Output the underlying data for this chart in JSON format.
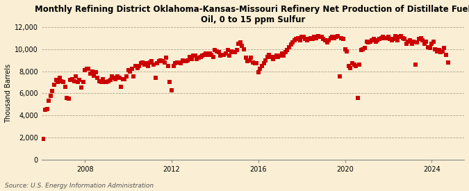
{
  "title": "Monthly Refining District Oklahoma-Kansas-Missouri Refinery Net Production of Distillate Fuel\nOil, 0 to 15 ppm Sulfur",
  "ylabel": "Thousand Barrels",
  "source": "Source: U.S. Energy Information Administration",
  "bg_color": "#faefd4",
  "plot_bg_color": "#faefd4",
  "marker_color": "#cc0000",
  "marker": "s",
  "marker_size": 4,
  "ylim": [
    0,
    12000
  ],
  "yticks": [
    0,
    2000,
    4000,
    6000,
    8000,
    10000,
    12000
  ],
  "ytick_labels": [
    "0",
    "2,000",
    "4,000",
    "6,000",
    "8,000",
    "10,000",
    "12,000"
  ],
  "xlim_start": 2006.0,
  "xlim_end": 2025.5,
  "xticks": [
    2008,
    2012,
    2016,
    2020,
    2024
  ],
  "grid_color": "#b0a090",
  "grid_style": "--",
  "title_fontsize": 8.5,
  "data": [
    [
      2006.083,
      1900
    ],
    [
      2006.167,
      4500
    ],
    [
      2006.25,
      4600
    ],
    [
      2006.333,
      5300
    ],
    [
      2006.417,
      5800
    ],
    [
      2006.5,
      6200
    ],
    [
      2006.583,
      6800
    ],
    [
      2006.667,
      7200
    ],
    [
      2006.75,
      7000
    ],
    [
      2006.833,
      7400
    ],
    [
      2006.917,
      7100
    ],
    [
      2007.0,
      7000
    ],
    [
      2007.083,
      6600
    ],
    [
      2007.167,
      5600
    ],
    [
      2007.25,
      5500
    ],
    [
      2007.333,
      7200
    ],
    [
      2007.417,
      7300
    ],
    [
      2007.5,
      7100
    ],
    [
      2007.583,
      7500
    ],
    [
      2007.667,
      7000
    ],
    [
      2007.75,
      7200
    ],
    [
      2007.833,
      6500
    ],
    [
      2007.917,
      7000
    ],
    [
      2008.0,
      8100
    ],
    [
      2008.083,
      8200
    ],
    [
      2008.167,
      8200
    ],
    [
      2008.25,
      7800
    ],
    [
      2008.333,
      8000
    ],
    [
      2008.417,
      7600
    ],
    [
      2008.5,
      7900
    ],
    [
      2008.583,
      7400
    ],
    [
      2008.667,
      7100
    ],
    [
      2008.75,
      7000
    ],
    [
      2008.833,
      7300
    ],
    [
      2008.917,
      7000
    ],
    [
      2009.0,
      7000
    ],
    [
      2009.083,
      7100
    ],
    [
      2009.167,
      7200
    ],
    [
      2009.25,
      7500
    ],
    [
      2009.333,
      7400
    ],
    [
      2009.417,
      7300
    ],
    [
      2009.5,
      7500
    ],
    [
      2009.583,
      7400
    ],
    [
      2009.667,
      6600
    ],
    [
      2009.75,
      7300
    ],
    [
      2009.833,
      7300
    ],
    [
      2009.917,
      7500
    ],
    [
      2010.0,
      8100
    ],
    [
      2010.083,
      8000
    ],
    [
      2010.167,
      8200
    ],
    [
      2010.25,
      7500
    ],
    [
      2010.333,
      8500
    ],
    [
      2010.417,
      8300
    ],
    [
      2010.5,
      8500
    ],
    [
      2010.583,
      8700
    ],
    [
      2010.667,
      8800
    ],
    [
      2010.75,
      8600
    ],
    [
      2010.833,
      8700
    ],
    [
      2010.917,
      8500
    ],
    [
      2011.0,
      8800
    ],
    [
      2011.083,
      8900
    ],
    [
      2011.167,
      8600
    ],
    [
      2011.25,
      7400
    ],
    [
      2011.333,
      8700
    ],
    [
      2011.417,
      8900
    ],
    [
      2011.5,
      9000
    ],
    [
      2011.583,
      8900
    ],
    [
      2011.667,
      8800
    ],
    [
      2011.75,
      9200
    ],
    [
      2011.833,
      8500
    ],
    [
      2011.917,
      7000
    ],
    [
      2012.0,
      6300
    ],
    [
      2012.083,
      8500
    ],
    [
      2012.167,
      8700
    ],
    [
      2012.25,
      8800
    ],
    [
      2012.333,
      8800
    ],
    [
      2012.417,
      8700
    ],
    [
      2012.5,
      9000
    ],
    [
      2012.583,
      8900
    ],
    [
      2012.667,
      8900
    ],
    [
      2012.75,
      9000
    ],
    [
      2012.833,
      9300
    ],
    [
      2012.917,
      9100
    ],
    [
      2013.0,
      9400
    ],
    [
      2013.083,
      9400
    ],
    [
      2013.167,
      9100
    ],
    [
      2013.25,
      9200
    ],
    [
      2013.333,
      9300
    ],
    [
      2013.417,
      9400
    ],
    [
      2013.5,
      9500
    ],
    [
      2013.583,
      9600
    ],
    [
      2013.667,
      9500
    ],
    [
      2013.75,
      9600
    ],
    [
      2013.833,
      9500
    ],
    [
      2013.917,
      9300
    ],
    [
      2014.0,
      9900
    ],
    [
      2014.083,
      9800
    ],
    [
      2014.167,
      9700
    ],
    [
      2014.25,
      9400
    ],
    [
      2014.333,
      9500
    ],
    [
      2014.417,
      9500
    ],
    [
      2014.5,
      9600
    ],
    [
      2014.583,
      9900
    ],
    [
      2014.667,
      9400
    ],
    [
      2014.75,
      9800
    ],
    [
      2014.833,
      9700
    ],
    [
      2014.917,
      9700
    ],
    [
      2015.0,
      9900
    ],
    [
      2015.083,
      10500
    ],
    [
      2015.167,
      10600
    ],
    [
      2015.25,
      10300
    ],
    [
      2015.333,
      10000
    ],
    [
      2015.417,
      9200
    ],
    [
      2015.5,
      8900
    ],
    [
      2015.583,
      9000
    ],
    [
      2015.667,
      9200
    ],
    [
      2015.75,
      8800
    ],
    [
      2015.833,
      8700
    ],
    [
      2015.917,
      8700
    ],
    [
      2016.0,
      7900
    ],
    [
      2016.083,
      8200
    ],
    [
      2016.167,
      8500
    ],
    [
      2016.25,
      8700
    ],
    [
      2016.333,
      9000
    ],
    [
      2016.417,
      9300
    ],
    [
      2016.5,
      9500
    ],
    [
      2016.583,
      9300
    ],
    [
      2016.667,
      9100
    ],
    [
      2016.75,
      9300
    ],
    [
      2016.833,
      9400
    ],
    [
      2016.917,
      9300
    ],
    [
      2017.0,
      9400
    ],
    [
      2017.083,
      9600
    ],
    [
      2017.167,
      9400
    ],
    [
      2017.25,
      9700
    ],
    [
      2017.333,
      9900
    ],
    [
      2017.417,
      10200
    ],
    [
      2017.5,
      10400
    ],
    [
      2017.583,
      10600
    ],
    [
      2017.667,
      10800
    ],
    [
      2017.75,
      10900
    ],
    [
      2017.833,
      11000
    ],
    [
      2017.917,
      10800
    ],
    [
      2018.0,
      11100
    ],
    [
      2018.083,
      11100
    ],
    [
      2018.167,
      10900
    ],
    [
      2018.25,
      10800
    ],
    [
      2018.333,
      10900
    ],
    [
      2018.417,
      11000
    ],
    [
      2018.5,
      10900
    ],
    [
      2018.583,
      11100
    ],
    [
      2018.667,
      11000
    ],
    [
      2018.75,
      11200
    ],
    [
      2018.833,
      11100
    ],
    [
      2018.917,
      11100
    ],
    [
      2019.0,
      10900
    ],
    [
      2019.083,
      10800
    ],
    [
      2019.167,
      10600
    ],
    [
      2019.25,
      10800
    ],
    [
      2019.333,
      11000
    ],
    [
      2019.417,
      11100
    ],
    [
      2019.5,
      11000
    ],
    [
      2019.583,
      11100
    ],
    [
      2019.667,
      11200
    ],
    [
      2019.75,
      7500
    ],
    [
      2019.833,
      11000
    ],
    [
      2019.917,
      10900
    ],
    [
      2020.0,
      10000
    ],
    [
      2020.083,
      9800
    ],
    [
      2020.167,
      8500
    ],
    [
      2020.25,
      8300
    ],
    [
      2020.333,
      8700
    ],
    [
      2020.417,
      8600
    ],
    [
      2020.5,
      8500
    ],
    [
      2020.583,
      5600
    ],
    [
      2020.667,
      8600
    ],
    [
      2020.75,
      9900
    ],
    [
      2020.833,
      10000
    ],
    [
      2020.917,
      10100
    ],
    [
      2021.0,
      10700
    ],
    [
      2021.083,
      10600
    ],
    [
      2021.167,
      10700
    ],
    [
      2021.25,
      10800
    ],
    [
      2021.333,
      10900
    ],
    [
      2021.417,
      10700
    ],
    [
      2021.5,
      10800
    ],
    [
      2021.583,
      10900
    ],
    [
      2021.667,
      11000
    ],
    [
      2021.75,
      11100
    ],
    [
      2021.833,
      11000
    ],
    [
      2021.917,
      11000
    ],
    [
      2022.0,
      11100
    ],
    [
      2022.083,
      10900
    ],
    [
      2022.167,
      10800
    ],
    [
      2022.25,
      10900
    ],
    [
      2022.333,
      11200
    ],
    [
      2022.417,
      10800
    ],
    [
      2022.5,
      11100
    ],
    [
      2022.583,
      11200
    ],
    [
      2022.667,
      11000
    ],
    [
      2022.75,
      10900
    ],
    [
      2022.833,
      10500
    ],
    [
      2022.917,
      10700
    ],
    [
      2023.0,
      10800
    ],
    [
      2023.083,
      10500
    ],
    [
      2023.167,
      10700
    ],
    [
      2023.25,
      8600
    ],
    [
      2023.333,
      10600
    ],
    [
      2023.417,
      10900
    ],
    [
      2023.5,
      11000
    ],
    [
      2023.583,
      10800
    ],
    [
      2023.667,
      10500
    ],
    [
      2023.75,
      10700
    ],
    [
      2023.833,
      10200
    ],
    [
      2023.917,
      10100
    ],
    [
      2024.0,
      10500
    ],
    [
      2024.083,
      10700
    ],
    [
      2024.167,
      10000
    ],
    [
      2024.25,
      9800
    ],
    [
      2024.333,
      9900
    ],
    [
      2024.417,
      9700
    ],
    [
      2024.5,
      9800
    ],
    [
      2024.583,
      10100
    ],
    [
      2024.667,
      9500
    ],
    [
      2024.75,
      8800
    ]
  ]
}
